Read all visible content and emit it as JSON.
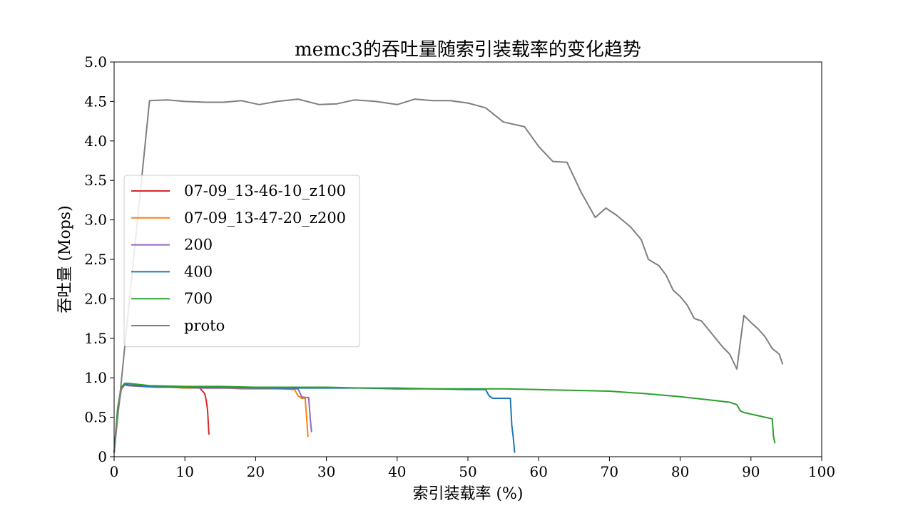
{
  "chart_data": {
    "type": "line",
    "title": "memc3的吞吐量随索引装载率的变化趋势",
    "xlabel": "索引装载率 (%)",
    "ylabel": "吞吐量 (Mops)",
    "xlim": [
      0,
      100
    ],
    "ylim": [
      0,
      5.0
    ],
    "xticks": [
      0,
      10,
      20,
      30,
      40,
      50,
      60,
      70,
      80,
      90,
      100
    ],
    "yticks": [
      0,
      0.5,
      1.0,
      1.5,
      2.0,
      2.5,
      3.0,
      3.5,
      4.0,
      4.5,
      5.0
    ],
    "xtick_labels": [
      "0",
      "10",
      "20",
      "30",
      "40",
      "50",
      "60",
      "70",
      "80",
      "90",
      "100"
    ],
    "ytick_labels": [
      "0",
      "0.5",
      "1.0",
      "1.5",
      "2.0",
      "2.5",
      "3.0",
      "3.5",
      "4.0",
      "4.5",
      "5.0"
    ],
    "grid": false,
    "legend_position": "center-left",
    "series": [
      {
        "name": "07-09_13-46-10_z100",
        "color": "#d62728",
        "x": [
          0,
          0.5,
          1.0,
          1.5,
          2,
          3,
          4,
          5,
          6,
          7,
          8,
          9,
          10,
          11,
          12,
          12.5,
          12.8,
          13.0,
          13.2,
          13.3,
          13.4
        ],
        "y": [
          0.05,
          0.55,
          0.85,
          0.92,
          0.91,
          0.9,
          0.9,
          0.89,
          0.89,
          0.89,
          0.89,
          0.88,
          0.88,
          0.88,
          0.88,
          0.83,
          0.8,
          0.72,
          0.6,
          0.45,
          0.28
        ]
      },
      {
        "name": "07-09_13-47-20_z200",
        "color": "#ff7f0e",
        "x": [
          0,
          0.5,
          1.0,
          1.5,
          2,
          4,
          6,
          8,
          10,
          12,
          14,
          16,
          18,
          20,
          22,
          24,
          25.5,
          26,
          26.5,
          27,
          27.2,
          27.4
        ],
        "y": [
          0.05,
          0.55,
          0.85,
          0.91,
          0.9,
          0.89,
          0.88,
          0.88,
          0.87,
          0.87,
          0.87,
          0.87,
          0.86,
          0.86,
          0.86,
          0.86,
          0.85,
          0.77,
          0.74,
          0.74,
          0.5,
          0.25
        ]
      },
      {
        "name": "200",
        "color": "#9467bd",
        "x": [
          0,
          0.5,
          1.0,
          1.5,
          2,
          4,
          6,
          8,
          10,
          12,
          14,
          16,
          18,
          20,
          22,
          24,
          26,
          26.5,
          27,
          27.5,
          27.7,
          27.9
        ],
        "y": [
          0.05,
          0.55,
          0.86,
          0.91,
          0.9,
          0.89,
          0.88,
          0.88,
          0.88,
          0.87,
          0.87,
          0.87,
          0.87,
          0.87,
          0.87,
          0.86,
          0.86,
          0.76,
          0.75,
          0.75,
          0.5,
          0.31
        ]
      },
      {
        "name": "400",
        "color": "#1f77b4",
        "x": [
          0,
          0.5,
          1.0,
          1.5,
          2,
          5,
          10,
          15,
          20,
          25,
          30,
          35,
          40,
          45,
          50,
          52.5,
          53,
          53.5,
          54,
          55,
          56,
          56.2,
          56.4,
          56.6
        ],
        "y": [
          0.05,
          0.6,
          0.88,
          0.92,
          0.91,
          0.89,
          0.88,
          0.88,
          0.87,
          0.87,
          0.87,
          0.87,
          0.86,
          0.86,
          0.85,
          0.85,
          0.77,
          0.74,
          0.74,
          0.74,
          0.74,
          0.4,
          0.25,
          0.05
        ]
      },
      {
        "name": "700",
        "color": "#2ca02c",
        "x": [
          0,
          0.5,
          1.0,
          1.5,
          2,
          5,
          10,
          15,
          20,
          25,
          30,
          35,
          40,
          45,
          50,
          55,
          60,
          65,
          70,
          75,
          80,
          85,
          87,
          88,
          88.5,
          89,
          90,
          91,
          92,
          93,
          93.2,
          93.4
        ],
        "y": [
          0.05,
          0.62,
          0.88,
          0.93,
          0.93,
          0.9,
          0.89,
          0.89,
          0.88,
          0.88,
          0.88,
          0.87,
          0.87,
          0.86,
          0.86,
          0.86,
          0.85,
          0.84,
          0.83,
          0.8,
          0.76,
          0.71,
          0.69,
          0.66,
          0.58,
          0.56,
          0.54,
          0.52,
          0.5,
          0.48,
          0.25,
          0.17
        ]
      },
      {
        "name": "proto",
        "color": "#7f7f7f",
        "x": [
          0,
          5,
          7.5,
          10,
          13,
          15.5,
          18,
          20.5,
          23,
          26,
          29,
          31.5,
          34,
          37,
          40,
          42.5,
          45,
          47.5,
          50,
          52.5,
          55,
          58,
          60,
          62,
          64,
          66,
          68,
          69.5,
          71,
          73,
          74.5,
          75.5,
          77,
          78,
          79,
          80,
          81,
          82,
          83,
          84,
          85,
          86,
          87,
          88,
          88.5,
          89,
          90,
          91,
          92,
          93,
          94,
          94.5
        ],
        "y": [
          0.05,
          4.51,
          4.52,
          4.5,
          4.49,
          4.49,
          4.51,
          4.46,
          4.5,
          4.53,
          4.46,
          4.47,
          4.52,
          4.5,
          4.46,
          4.53,
          4.51,
          4.51,
          4.48,
          4.42,
          4.24,
          4.18,
          3.93,
          3.74,
          3.73,
          3.35,
          3.03,
          3.15,
          3.06,
          2.91,
          2.75,
          2.5,
          2.42,
          2.3,
          2.11,
          2.03,
          1.92,
          1.75,
          1.72,
          1.61,
          1.5,
          1.39,
          1.3,
          1.11,
          1.45,
          1.79,
          1.7,
          1.62,
          1.52,
          1.37,
          1.3,
          1.17
        ]
      }
    ]
  }
}
